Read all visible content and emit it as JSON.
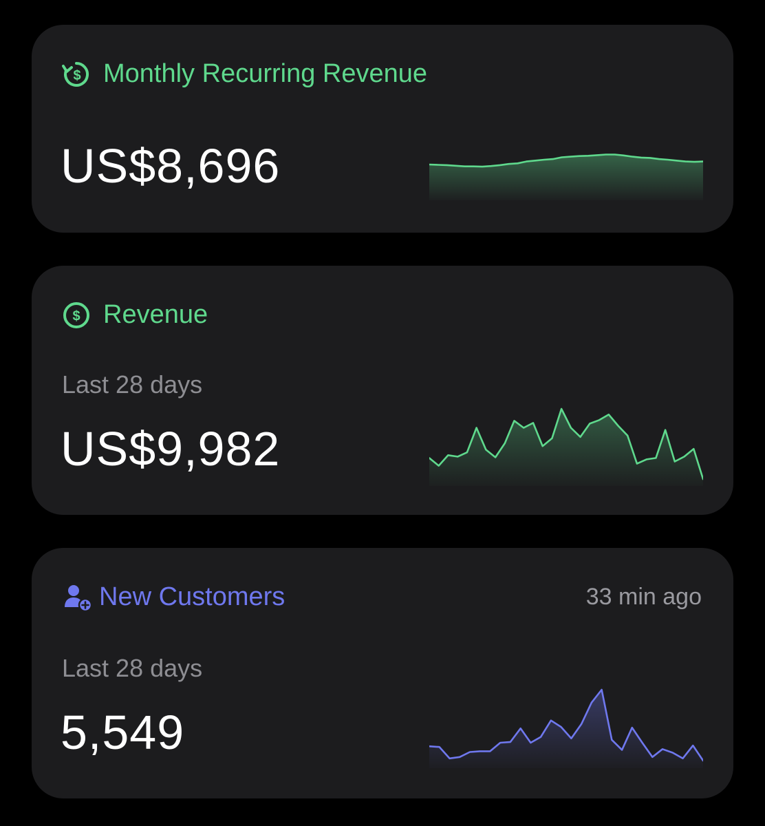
{
  "cards": [
    {
      "id": "mrr",
      "title": "Monthly Recurring Revenue",
      "icon": "recurring-dollar-icon",
      "accent": "#5fd98d",
      "sublabel": "",
      "value": "US$8,696",
      "timestamp": "",
      "sparkline": [
        0.34,
        0.33,
        0.32,
        0.3,
        0.28,
        0.28,
        0.27,
        0.29,
        0.32,
        0.36,
        0.38,
        0.44,
        0.47,
        0.5,
        0.52,
        0.58,
        0.6,
        0.62,
        0.63,
        0.65,
        0.67,
        0.67,
        0.64,
        0.6,
        0.57,
        0.56,
        0.52,
        0.5,
        0.47,
        0.44,
        0.43,
        0.44
      ]
    },
    {
      "id": "revenue",
      "title": "Revenue",
      "icon": "dollar-circle-icon",
      "accent": "#5fd98d",
      "sublabel": "Last 28 days",
      "value": "US$9,982",
      "timestamp": "",
      "sparkline": [
        0.3,
        0.19,
        0.34,
        0.32,
        0.38,
        0.73,
        0.42,
        0.31,
        0.51,
        0.83,
        0.73,
        0.8,
        0.47,
        0.58,
        1.0,
        0.73,
        0.6,
        0.79,
        0.84,
        0.92,
        0.76,
        0.62,
        0.22,
        0.28,
        0.3,
        0.7,
        0.25,
        0.32,
        0.43,
        0.0
      ]
    },
    {
      "id": "customers",
      "title": "New Customers",
      "icon": "person-add-icon",
      "accent": "#6f78ee",
      "sublabel": "Last 28 days",
      "value": "5,549",
      "timestamp": "33 min ago",
      "sparkline": [
        0.21,
        0.2,
        0.04,
        0.06,
        0.13,
        0.14,
        0.14,
        0.26,
        0.27,
        0.46,
        0.26,
        0.34,
        0.57,
        0.48,
        0.32,
        0.52,
        0.82,
        1.0,
        0.3,
        0.16,
        0.47,
        0.26,
        0.06,
        0.17,
        0.12,
        0.04,
        0.22,
        0.01
      ]
    }
  ]
}
